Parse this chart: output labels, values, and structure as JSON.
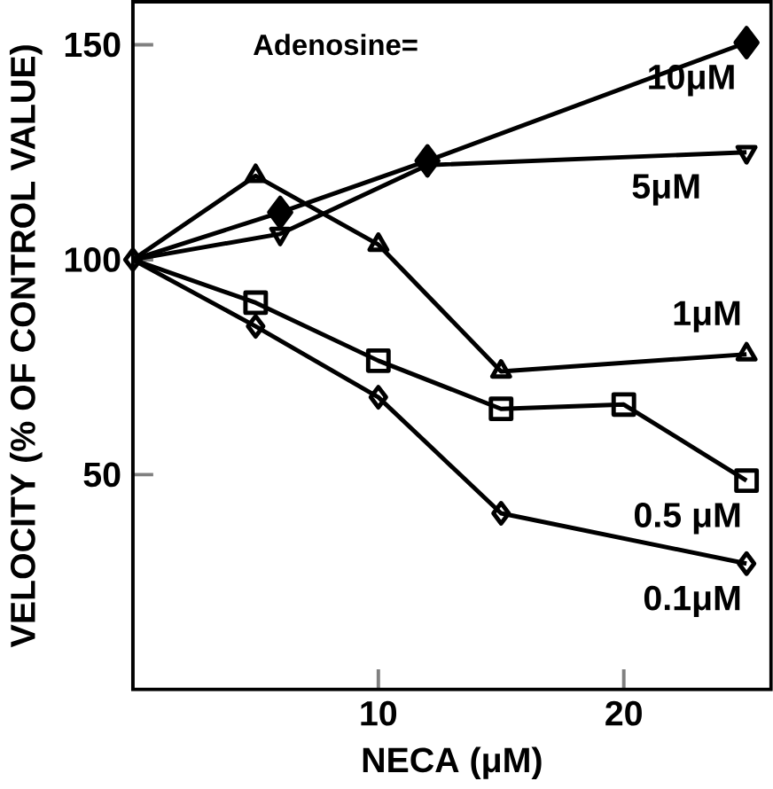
{
  "chart_data": {
    "type": "line",
    "xlabel": "NECA (μM)",
    "ylabel": "VELOCITY (% OF CONTROL VALUE)",
    "xlim": [
      0,
      26
    ],
    "ylim": [
      0,
      160
    ],
    "xticks": [
      10,
      20
    ],
    "yticks": [
      50,
      100,
      150
    ],
    "grid": false,
    "legend": false,
    "line_style": "solid",
    "annotations": [
      "Adenosine="
    ],
    "series": [
      {
        "name": "10μM",
        "color": "#000000",
        "marker": "diamond",
        "x": [
          0,
          6,
          12,
          25
        ],
        "values": [
          100,
          111,
          123,
          150.5
        ]
      },
      {
        "name": "5μM",
        "color": "#000000",
        "marker": "triangle",
        "x": [
          0,
          6,
          12,
          25
        ],
        "values": [
          100,
          106,
          122,
          125
        ]
      },
      {
        "name": "1μM",
        "color": "#000000",
        "marker": "triangle",
        "x": [
          0,
          5,
          10,
          15,
          25
        ],
        "values": [
          100,
          119.5,
          103.5,
          74,
          78
        ]
      },
      {
        "name": "0.5 μM",
        "color": "#000000",
        "marker": "square",
        "x": [
          0,
          5,
          10,
          15,
          20,
          25
        ],
        "values": [
          100,
          90,
          76.5,
          65.3,
          66.3,
          48.6
        ]
      },
      {
        "name": "0.1μM",
        "color": "#000000",
        "marker": "diamond",
        "x": [
          0,
          5,
          10,
          15,
          25
        ],
        "values": [
          100,
          84.5,
          68,
          41,
          29.3
        ]
      }
    ]
  }
}
